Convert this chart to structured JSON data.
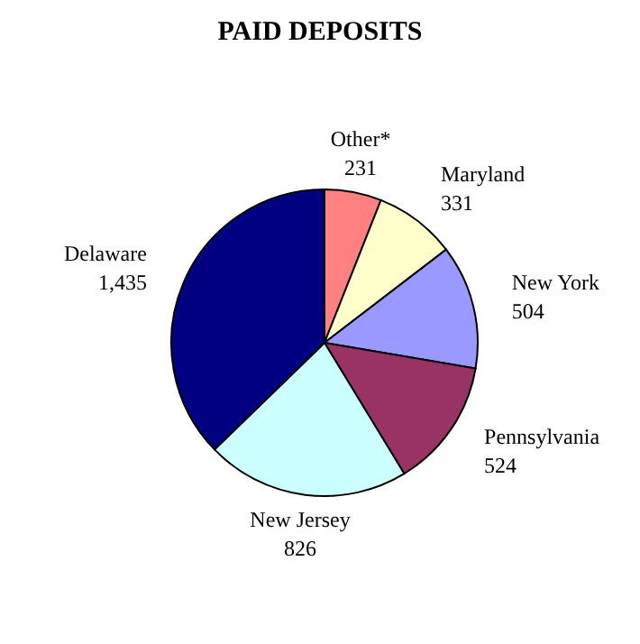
{
  "chart_data": {
    "type": "pie",
    "title": "PAID DEPOSITS",
    "categories": [
      "Other*",
      "Maryland",
      "New York",
      "Pennsylvania",
      "New Jersey",
      "Delaware"
    ],
    "values": [
      231,
      331,
      504,
      524,
      826,
      1435
    ],
    "colors": [
      "#ff8080",
      "#ffffcc",
      "#9999ff",
      "#993366",
      "#ccffff",
      "#000080"
    ],
    "value_labels": [
      "231",
      "331",
      "504",
      "524",
      "826",
      "1,435"
    ]
  }
}
